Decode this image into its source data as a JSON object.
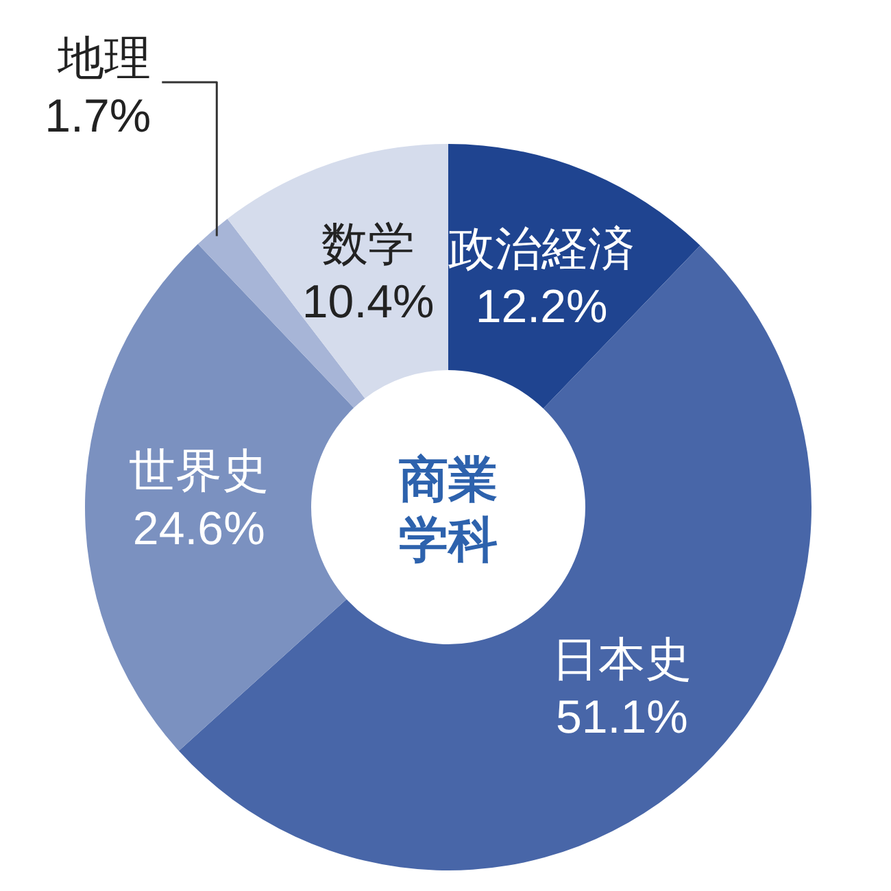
{
  "chart_data": {
    "type": "donut",
    "title": "商業学科",
    "categories": [
      "政治経済",
      "日本史",
      "世界史",
      "地理",
      "数学"
    ],
    "values": [
      12.2,
      51.1,
      24.6,
      1.7,
      10.4
    ],
    "value_labels": [
      "12.2%",
      "51.1%",
      "24.6%",
      "1.7%",
      "10.4%"
    ],
    "colors": [
      "#1f4490",
      "#4866a8",
      "#7b91c0",
      "#a7b5d7",
      "#d5dcec"
    ]
  }
}
